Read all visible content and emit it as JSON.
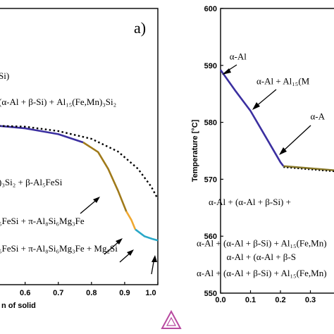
{
  "chart_data": [
    {
      "type": "line",
      "panel_label": "a)",
      "xlabel_fragment": "n of solid",
      "x_ticks": [
        "0.6",
        "0.7",
        "0.8",
        "0.9",
        "1.0"
      ],
      "xlim": [
        0.52,
        1.0
      ],
      "ylim": [
        0,
        100
      ],
      "series": [
        {
          "color": "#3b2fa0",
          "points": [
            [
              0.52,
              57.5
            ],
            [
              0.6,
              56.6
            ],
            [
              0.7,
              54.5
            ],
            [
              0.775,
              51.5
            ]
          ]
        },
        {
          "color": "#a07a1a",
          "points": [
            [
              0.775,
              51.5
            ],
            [
              0.82,
              48.0
            ],
            [
              0.85,
              42.0
            ],
            [
              0.88,
              34.0
            ],
            [
              0.905,
              26.5
            ]
          ]
        },
        {
          "color": "#f0a830",
          "points": [
            [
              0.905,
              26.5
            ],
            [
              0.92,
              23.5
            ],
            [
              0.932,
              20.0
            ]
          ]
        },
        {
          "color": "#2aa8c8",
          "points": [
            [
              0.932,
              20.0
            ],
            [
              0.96,
              17.5
            ],
            [
              0.985,
              16.5
            ],
            [
              1.0,
              16.0
            ]
          ]
        }
      ],
      "dotted_series": {
        "color": "#000000",
        "points": [
          [
            0.52,
            57.5
          ],
          [
            0.6,
            57.2
          ],
          [
            0.7,
            55.6
          ],
          [
            0.8,
            52.8
          ],
          [
            0.88,
            48.2
          ],
          [
            0.94,
            42.0
          ],
          [
            0.98,
            35.5
          ],
          [
            1.0,
            31.0
          ]
        ]
      },
      "annotations": [
        {
          "text": "Si)",
          "x": 0.52,
          "y": 74.5
        },
        {
          "text": "(α-Al + β-Si) + Al₁₅(Fe,Mn)₃Si₂",
          "x": 0.52,
          "y": 65.0
        },
        {
          "text": ")₃Si₂ + β-Al₅FeSi",
          "x": 0.52,
          "y": 36.0
        },
        {
          "text": "₅FeSi + π-Al₈Si₆Mg₃Fe",
          "x": 0.52,
          "y": 22.0
        },
        {
          "text": "₅FeSi + π-Al₈Si₆Mg₃Fe + Mg₂Si",
          "x": 0.52,
          "y": 12.0
        }
      ]
    },
    {
      "type": "line",
      "ylabel": "Temperature [°C]",
      "x_ticks": [
        "0.0",
        "0.1",
        "0.2",
        "0.3"
      ],
      "y_ticks": [
        "550",
        "560",
        "570",
        "580",
        "590",
        "600"
      ],
      "xlim": [
        0.0,
        0.4
      ],
      "ylim": [
        550,
        600
      ],
      "series": [
        {
          "color": "#3b2fa0",
          "points": [
            [
              0.0,
              589.2
            ],
            [
              0.05,
              585.5
            ],
            [
              0.1,
              582.0
            ],
            [
              0.15,
              577.5
            ],
            [
              0.2,
              573.0
            ],
            [
              0.21,
              572.3
            ]
          ]
        },
        {
          "color": "#8a7a2a",
          "points": [
            [
              0.21,
              572.3
            ],
            [
              0.28,
              572.0
            ],
            [
              0.35,
              571.7
            ],
            [
              0.4,
              571.5
            ]
          ]
        }
      ],
      "annotations": [
        {
          "text": "α-Al",
          "x": 0.03,
          "y": 591.0
        },
        {
          "text": "α-Al + Al₁₅(M",
          "x": 0.12,
          "y": 586.7
        },
        {
          "text": "α-A",
          "x": 0.3,
          "y": 580.5
        },
        {
          "text": "α-Al + (α-Al + β-Si) +",
          "x": -0.04,
          "y": 565.5
        },
        {
          "text": "α-Al + (α-Al + β-Si) + Al₁₅(Fe,Mn)",
          "x": -0.08,
          "y": 558.2
        },
        {
          "text": "α-Al + (α-Al + β-S",
          "x": 0.02,
          "y": 555.8
        },
        {
          "text": "α-Al + (α-Al + β-Si) + Al₁₅(Fe,Mn)",
          "x": -0.08,
          "y": 553.0
        }
      ]
    }
  ]
}
